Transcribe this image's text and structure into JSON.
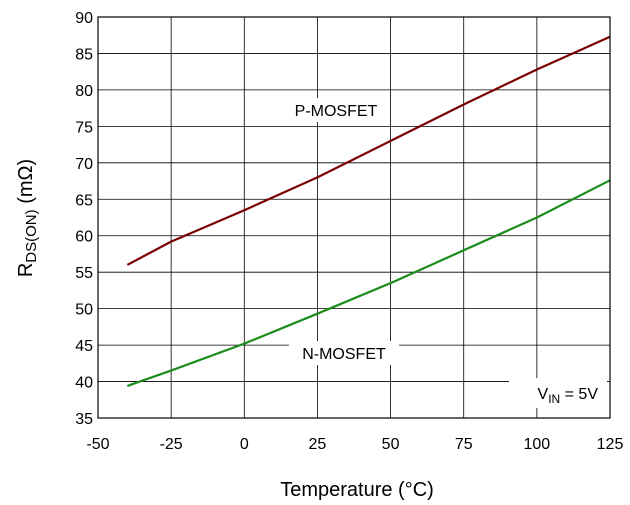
{
  "chart_data": {
    "type": "line",
    "title": "",
    "xlabel": "Temperature (°C)",
    "ylabel_main": "R",
    "ylabel_sub": "DS(ON)",
    "ylabel_unit": " (mΩ)",
    "xlim": [
      -50,
      125
    ],
    "ylim": [
      35,
      90
    ],
    "xticks": [
      -50,
      -25,
      0,
      25,
      50,
      75,
      100,
      125
    ],
    "yticks": [
      35,
      40,
      45,
      50,
      55,
      60,
      65,
      70,
      75,
      80,
      85,
      90
    ],
    "xtick_labels": [
      "-50",
      "-25",
      "0",
      "25",
      "50",
      "75",
      "100",
      "125"
    ],
    "ytick_labels": [
      "35",
      "40",
      "45",
      "50",
      "55",
      "60",
      "65",
      "70",
      "75",
      "80",
      "85",
      "90"
    ],
    "grid": true,
    "series": [
      {
        "name": "P-MOSFET",
        "color": "#7a0000",
        "x": [
          -40,
          -25,
          0,
          25,
          50,
          75,
          100,
          125
        ],
        "y": [
          56.0,
          59.2,
          63.5,
          68.0,
          73.0,
          78.0,
          82.8,
          87.3
        ]
      },
      {
        "name": "N-MOSFET",
        "color": "#1a8c1a",
        "x": [
          -40,
          -25,
          0,
          25,
          50,
          75,
          100,
          125
        ],
        "y": [
          39.4,
          41.5,
          45.2,
          49.3,
          53.5,
          58.0,
          62.5,
          67.6
        ]
      }
    ],
    "annotation": {
      "v_main": "V",
      "v_sub": "IN",
      "v_rest": " = 5V"
    }
  }
}
